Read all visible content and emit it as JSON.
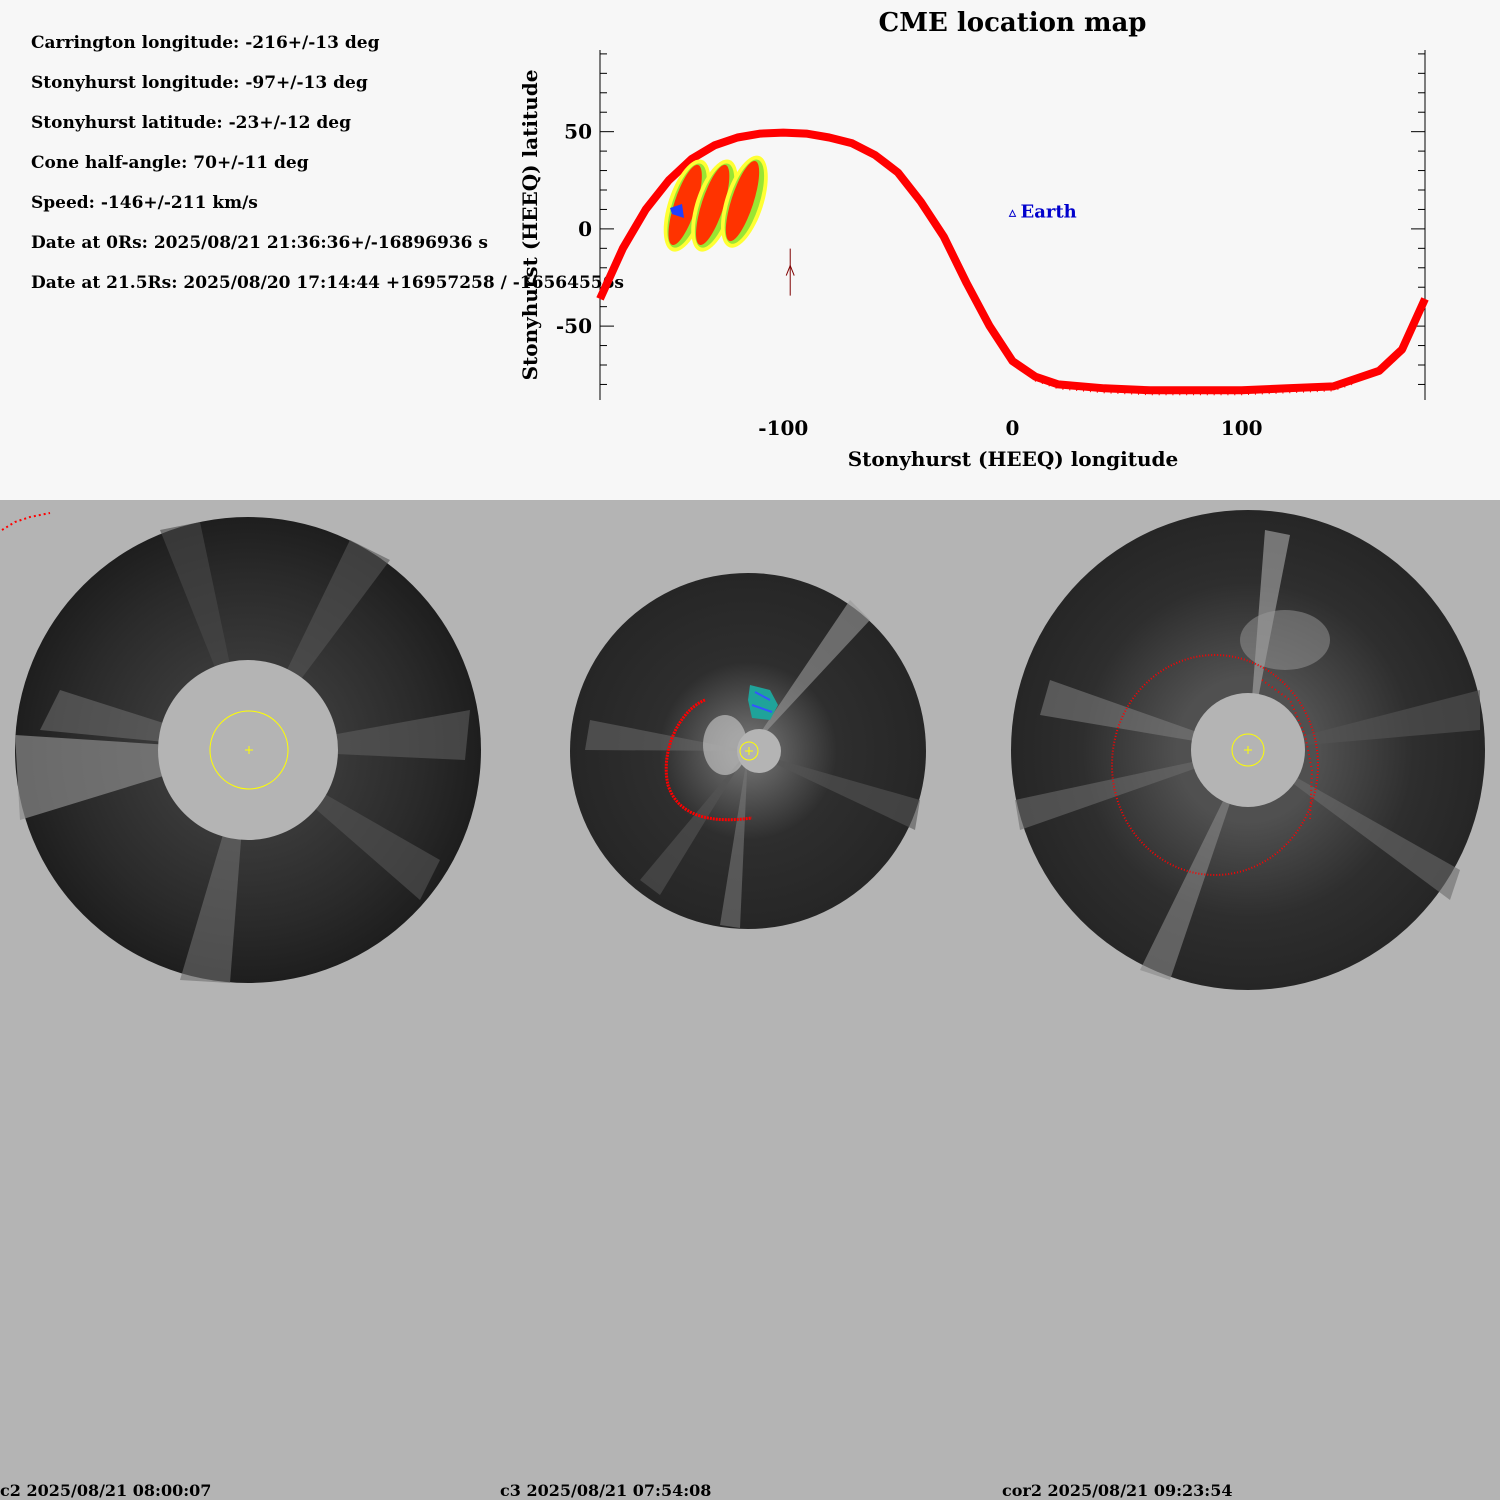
{
  "parameters": [
    "Carrington longitude: -216+/-13 deg",
    "Stonyhurst longitude: -97+/-13 deg",
    "Stonyhurst latitude: -23+/-12 deg",
    "Cone half-angle: 70+/-11 deg",
    "Speed: -146+/-211 km/s",
    "Date at 0Rs: 2025/08/21 21:36:36+/-16896936 s",
    "Date at 21.5Rs: 2025/08/20 17:14:44 +16957258 / -16564556s"
  ],
  "chart_data": {
    "type": "scatter",
    "title": "CME location map",
    "xlabel": "Stonyhurst (HEEQ) longitude",
    "ylabel": "Stonyhurst (HEEQ) latitude",
    "xlim": [
      -180,
      180
    ],
    "ylim": [
      -88,
      92
    ],
    "xticks": [
      -100,
      0,
      100
    ],
    "yticks": [
      50,
      0,
      -50
    ],
    "cone_outline": {
      "color": "#ff0000",
      "points": [
        [
          -180,
          -36
        ],
        [
          -170,
          -10
        ],
        [
          -160,
          10
        ],
        [
          -150,
          25
        ],
        [
          -140,
          36
        ],
        [
          -130,
          43
        ],
        [
          -120,
          47
        ],
        [
          -110,
          49
        ],
        [
          -100,
          49.5
        ],
        [
          -90,
          49
        ],
        [
          -80,
          47
        ],
        [
          -70,
          44
        ],
        [
          -60,
          38
        ],
        [
          -50,
          29
        ],
        [
          -40,
          14
        ],
        [
          -30,
          -4
        ],
        [
          -20,
          -28
        ],
        [
          -10,
          -50
        ],
        [
          0,
          -68
        ],
        [
          10,
          -76
        ],
        [
          20,
          -80
        ],
        [
          40,
          -82
        ],
        [
          60,
          -83
        ],
        [
          80,
          -83
        ],
        [
          100,
          -83
        ],
        [
          120,
          -82
        ],
        [
          140,
          -81
        ],
        [
          160,
          -73
        ],
        [
          170,
          -62
        ],
        [
          180,
          -36
        ]
      ]
    },
    "cme_patches": [
      {
        "longitude": -142,
        "latitude": 12
      },
      {
        "longitude": -130,
        "latitude": 12
      },
      {
        "longitude": -117,
        "latitude": 14
      }
    ],
    "marker": {
      "longitude": -97,
      "latitude": -23,
      "color": "#800000"
    },
    "earth": {
      "label": "Earth",
      "longitude": 0,
      "latitude": 8,
      "color": "#0000cc"
    }
  },
  "panels": [
    {
      "label": "c2 2025/08/21 08:00:07"
    },
    {
      "label": "c3 2025/08/21 07:54:08"
    },
    {
      "label": "cor2 2025/08/21 09:23:54"
    }
  ],
  "colors": {
    "cme_outline": "#ff0000",
    "sun_circle": "#ffff00",
    "earth": "#0000cc",
    "background_bottom": "#b4b4b4"
  }
}
